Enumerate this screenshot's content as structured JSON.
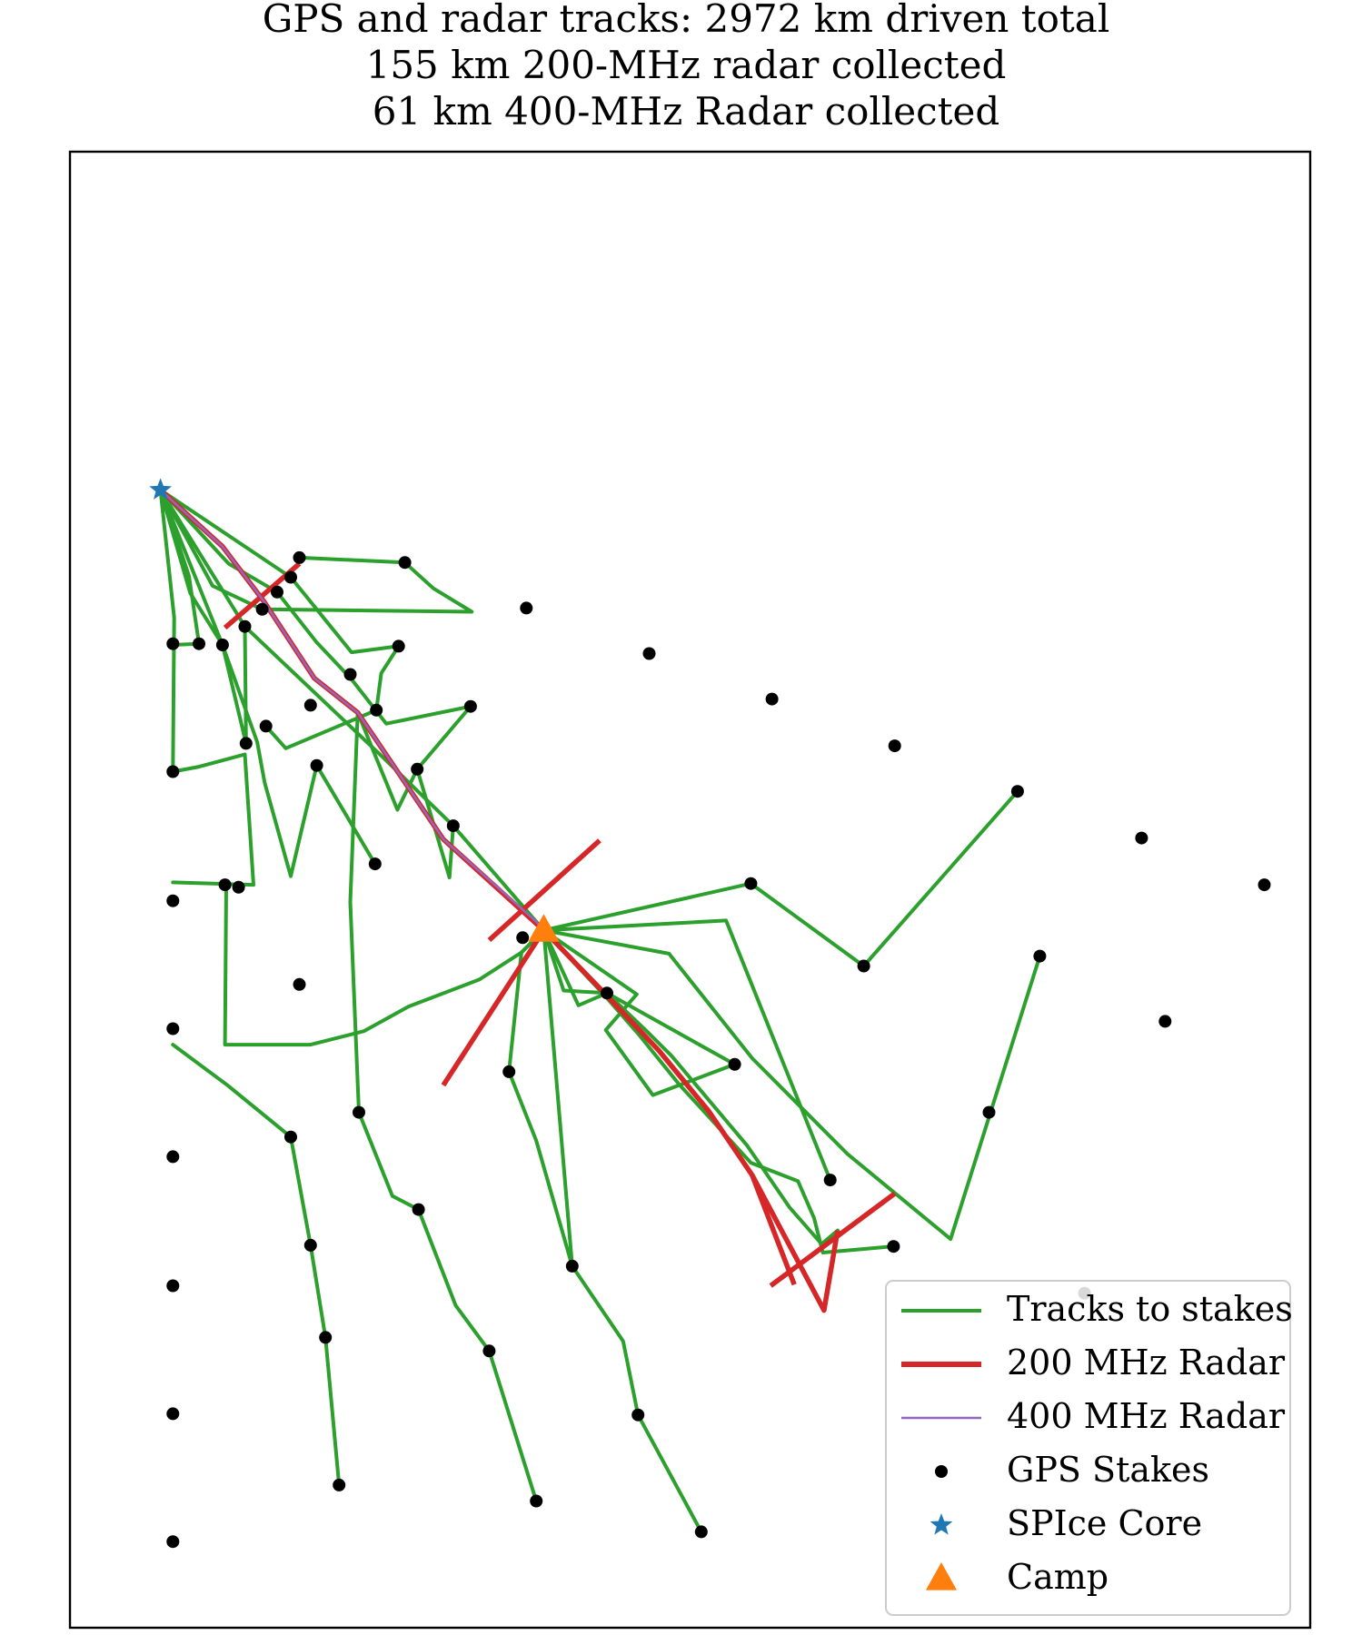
{
  "chart_data": {
    "type": "scatter",
    "title_lines": [
      "GPS and radar tracks: 2972 km driven total",
      "155 km 200-MHz radar collected",
      "61 km 400-MHz Radar collected"
    ],
    "xlabel": "",
    "ylabel": "",
    "xlim": [
      0,
      1000
    ],
    "ylim": [
      0,
      1200
    ],
    "grid": false,
    "legend_position": "lower right",
    "colors": {
      "tracks": "#2ca02c",
      "radar200": "#d62728",
      "radar400": "#9467bd",
      "stakes": "#000000",
      "spice": "#1f77b4",
      "camp": "#ff7f0e"
    },
    "legend": [
      {
        "label": "Tracks to stakes",
        "marker": "line",
        "color": "#2ca02c"
      },
      {
        "label": "200 MHz Radar",
        "marker": "line-thick",
        "color": "#d62728"
      },
      {
        "label": "400 MHz Radar",
        "marker": "line",
        "color": "#9467bd"
      },
      {
        "label": "GPS Stakes",
        "marker": "dot",
        "color": "#000000"
      },
      {
        "label": "SPIce Core",
        "marker": "star",
        "color": "#1f77b4"
      },
      {
        "label": "Camp",
        "marker": "triangle",
        "color": "#ff7f0e"
      }
    ],
    "spice_core": [
      73,
      925
    ],
    "camp": [
      382,
      567
    ],
    "gps_stakes": [
      [
        83,
        800
      ],
      [
        83,
        696
      ],
      [
        83,
        591
      ],
      [
        83,
        487
      ],
      [
        83,
        383
      ],
      [
        83,
        278
      ],
      [
        83,
        174
      ],
      [
        83,
        70
      ],
      [
        104,
        800
      ],
      [
        123,
        799
      ],
      [
        141,
        814
      ],
      [
        155,
        828
      ],
      [
        167,
        842
      ],
      [
        178,
        854
      ],
      [
        185,
        870
      ],
      [
        270,
        866
      ],
      [
        368,
        829
      ],
      [
        467,
        792
      ],
      [
        566,
        755
      ],
      [
        665,
        717
      ],
      [
        764,
        680
      ],
      [
        864,
        642
      ],
      [
        963,
        604
      ],
      [
        158,
        733
      ],
      [
        194,
        750
      ],
      [
        226,
        775
      ],
      [
        265,
        798
      ],
      [
        247,
        746
      ],
      [
        199,
        701
      ],
      [
        125,
        604
      ],
      [
        142,
        719
      ],
      [
        246,
        621
      ],
      [
        323,
        749
      ],
      [
        280,
        698
      ],
      [
        309,
        652
      ],
      [
        365,
        561
      ],
      [
        549,
        605
      ],
      [
        640,
        538
      ],
      [
        782,
        546
      ],
      [
        883,
        493
      ],
      [
        433,
        516
      ],
      [
        536,
        458
      ],
      [
        613,
        364
      ],
      [
        741,
        419
      ],
      [
        664,
        310
      ],
      [
        818,
        272
      ],
      [
        354,
        452
      ],
      [
        405,
        294
      ],
      [
        458,
        173
      ],
      [
        509,
        78
      ],
      [
        233,
        419
      ],
      [
        281,
        340
      ],
      [
        338,
        225
      ],
      [
        376,
        103
      ],
      [
        178,
        399
      ],
      [
        194,
        311
      ],
      [
        206,
        236
      ],
      [
        217,
        116
      ],
      [
        136,
        602
      ],
      [
        185,
        523
      ]
    ],
    "tracks": [
      [
        [
          73,
          925
        ],
        [
          84,
          821
        ],
        [
          83,
          696
        ]
      ],
      [
        [
          83,
          696
        ],
        [
          104,
          700
        ],
        [
          141,
          710
        ],
        [
          148,
          604
        ],
        [
          83,
          606
        ]
      ],
      [
        [
          73,
          925
        ],
        [
          96,
          855
        ],
        [
          104,
          800
        ],
        [
          83,
          799
        ]
      ],
      [
        [
          73,
          925
        ],
        [
          97,
          841
        ],
        [
          123,
          799
        ],
        [
          142,
          719
        ],
        [
          141,
          814
        ]
      ],
      [
        [
          73,
          925
        ],
        [
          115,
          847
        ],
        [
          155,
          828
        ]
      ],
      [
        [
          73,
          925
        ],
        [
          123,
          799
        ],
        [
          151,
          720
        ],
        [
          157,
          687
        ],
        [
          178,
          611
        ],
        [
          199,
          701
        ],
        [
          246,
          621
        ]
      ],
      [
        [
          73,
          925
        ],
        [
          128,
          865
        ],
        [
          167,
          842
        ],
        [
          199,
          801
        ],
        [
          227,
          771
        ],
        [
          255,
          735
        ],
        [
          323,
          749
        ],
        [
          280,
          698
        ]
      ],
      [
        [
          73,
          925
        ],
        [
          178,
          854
        ],
        [
          227,
          793
        ],
        [
          265,
          798
        ],
        [
          251,
          776
        ],
        [
          247,
          746
        ],
        [
          174,
          715
        ],
        [
          158,
          733
        ]
      ],
      [
        [
          73,
          925
        ],
        [
          141,
          814
        ],
        [
          209,
          749
        ],
        [
          251,
          709
        ],
        [
          309,
          652
        ],
        [
          382,
          567
        ]
      ],
      [
        [
          232,
          744
        ],
        [
          264,
          665
        ],
        [
          280,
          698
        ],
        [
          306,
          610
        ],
        [
          309,
          652
        ]
      ],
      [
        [
          232,
          744
        ],
        [
          226,
          590
        ],
        [
          233,
          419
        ]
      ],
      [
        [
          185,
          870
        ],
        [
          270,
          866
        ],
        [
          293,
          845
        ],
        [
          324,
          826
        ],
        [
          155,
          828
        ]
      ],
      [
        [
          382,
          567
        ],
        [
          549,
          605
        ],
        [
          640,
          538
        ],
        [
          764,
          680
        ]
      ],
      [
        [
          382,
          567
        ],
        [
          529,
          575
        ],
        [
          613,
          364
        ]
      ],
      [
        [
          382,
          567
        ],
        [
          483,
          548
        ],
        [
          550,
          463
        ],
        [
          627,
          385
        ],
        [
          710,
          316
        ],
        [
          782,
          546
        ]
      ],
      [
        [
          382,
          567
        ],
        [
          410,
          506
        ],
        [
          433,
          516
        ],
        [
          536,
          458
        ]
      ],
      [
        [
          382,
          567
        ],
        [
          398,
          518
        ],
        [
          433,
          516
        ],
        [
          464,
          486
        ],
        [
          485,
          465
        ],
        [
          546,
          392
        ],
        [
          580,
          342
        ],
        [
          606,
          312
        ],
        [
          619,
          323
        ]
      ],
      [
        [
          382,
          567
        ],
        [
          364,
          549
        ],
        [
          354,
          452
        ],
        [
          376,
          396
        ],
        [
          405,
          294
        ],
        [
          446,
          233
        ],
        [
          458,
          173
        ],
        [
          509,
          78
        ]
      ],
      [
        [
          382,
          567
        ],
        [
          364,
          549
        ],
        [
          330,
          527
        ],
        [
          273,
          505
        ],
        [
          237,
          485
        ],
        [
          194,
          474
        ],
        [
          125,
          474
        ],
        [
          126,
          604
        ]
      ],
      [
        [
          83,
          474
        ],
        [
          127,
          441
        ],
        [
          178,
          399
        ],
        [
          194,
          311
        ],
        [
          206,
          236
        ],
        [
          217,
          116
        ]
      ],
      [
        [
          233,
          419
        ],
        [
          260,
          351
        ],
        [
          281,
          340
        ],
        [
          311,
          262
        ],
        [
          338,
          225
        ],
        [
          376,
          103
        ]
      ],
      [
        [
          382,
          567
        ],
        [
          432,
          513
        ],
        [
          458,
          483
        ],
        [
          491,
          442
        ],
        [
          549,
          378
        ],
        [
          587,
          363
        ],
        [
          600,
          333
        ],
        [
          607,
          305
        ],
        [
          663,
          310
        ]
      ],
      [
        [
          382,
          567
        ],
        [
          405,
          294
        ]
      ],
      [
        [
          382,
          567
        ],
        [
          457,
          515
        ],
        [
          432,
          486
        ],
        [
          470,
          433
        ],
        [
          536,
          458
        ]
      ]
    ],
    "radar200": [
      [
        [
          73,
          925
        ],
        [
          123,
          879
        ],
        [
          156,
          835
        ],
        [
          197,
          772
        ],
        [
          232,
          744
        ],
        [
          301,
          641
        ],
        [
          382,
          567
        ],
        [
          427,
          520
        ],
        [
          475,
          469
        ],
        [
          515,
          420
        ],
        [
          550,
          368
        ],
        [
          608,
          258
        ],
        [
          619,
          323
        ]
      ],
      [
        [
          338,
          559
        ],
        [
          427,
          640
        ]
      ],
      [
        [
          382,
          567
        ],
        [
          301,
          441
        ]
      ],
      [
        [
          125,
          813
        ],
        [
          185,
          865
        ]
      ],
      [
        [
          565,
          278
        ],
        [
          665,
          353
        ]
      ],
      [
        [
          550,
          368
        ],
        [
          584,
          279
        ]
      ]
    ],
    "radar400": [
      [
        [
          73,
          925
        ],
        [
          123,
          879
        ],
        [
          156,
          835
        ],
        [
          197,
          772
        ],
        [
          232,
          744
        ],
        [
          301,
          641
        ],
        [
          375,
          575
        ],
        [
          382,
          567
        ]
      ]
    ]
  }
}
